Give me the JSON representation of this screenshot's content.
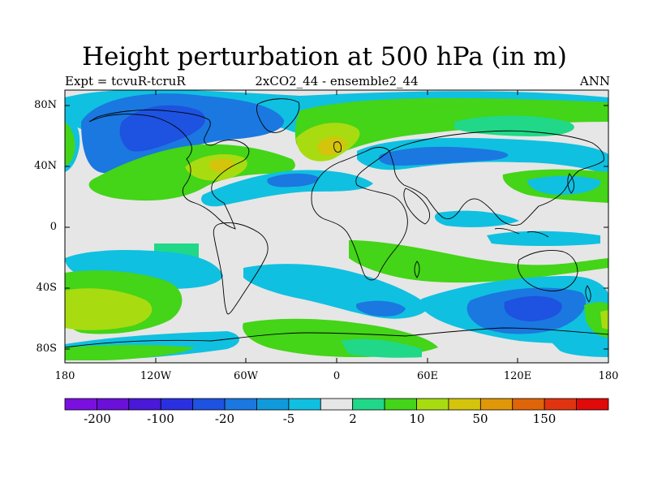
{
  "title": "Height perturbation at 500 hPa (in m)",
  "subtitle_left": "Expt = tcvuR-tcruR",
  "subtitle_center": "2xCO2_44 - ensemble2_44",
  "subtitle_right": "ANN",
  "lat_labels": [
    "80N",
    "40N",
    "0",
    "40S",
    "80S"
  ],
  "lon_labels": [
    "180",
    "120W",
    "60W",
    "0",
    "60E",
    "120E",
    "180"
  ],
  "colorbar": {
    "colors": [
      "#7a10e0",
      "#6a10d8",
      "#4a18d8",
      "#2a30e0",
      "#1e52e0",
      "#1a78e0",
      "#0f9adc",
      "#10c0e0",
      "#e6e6e6",
      "#20d888",
      "#44d418",
      "#a8dc10",
      "#d4c40c",
      "#e09808",
      "#e06408",
      "#e03410",
      "#e00a0a"
    ],
    "labels": [
      "-200",
      "-100",
      "-20",
      "-5",
      "2",
      "10",
      "50",
      "150"
    ]
  },
  "colors": {
    "neutral": "#e6e6e6",
    "light_blue": "#10c0e0",
    "mid_blue": "#1a78e0",
    "dark_blue": "#1e52e0",
    "teal_green": "#20d888",
    "green": "#44d418",
    "yellow_green": "#a8dc10",
    "yellow": "#d4c40c",
    "orange": "#e09808"
  }
}
